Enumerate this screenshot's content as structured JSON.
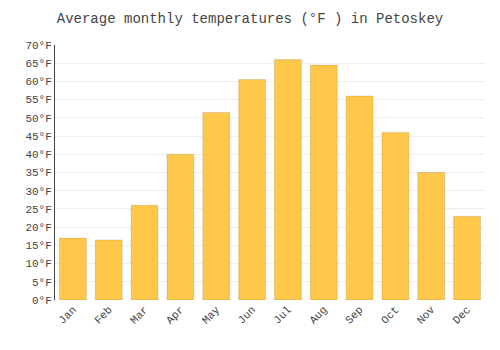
{
  "chart_data": {
    "type": "bar",
    "title": "Average monthly temperatures (°F ) in Petoskey",
    "categories": [
      "Jan",
      "Feb",
      "Mar",
      "Apr",
      "May",
      "Jun",
      "Jul",
      "Aug",
      "Sep",
      "Oct",
      "Nov",
      "Dec"
    ],
    "values": [
      17,
      16.5,
      26,
      40,
      51.5,
      60.5,
      66,
      64.5,
      56,
      46,
      35,
      23
    ],
    "color": "#FFC84A",
    "ylim": [
      0,
      70
    ],
    "yticks": [
      {
        "value": 0,
        "label": "0°F"
      },
      {
        "value": 5,
        "label": "5°F"
      },
      {
        "value": 10,
        "label": "10°F"
      },
      {
        "value": 15,
        "label": "15°F"
      },
      {
        "value": 20,
        "label": "20°F"
      },
      {
        "value": 25,
        "label": "25°F"
      },
      {
        "value": 30,
        "label": "30°F"
      },
      {
        "value": 35,
        "label": "35°F"
      },
      {
        "value": 40,
        "label": "40°F"
      },
      {
        "value": 45,
        "label": "45°F"
      },
      {
        "value": 50,
        "label": "50°F"
      },
      {
        "value": 55,
        "label": "55°F"
      },
      {
        "value": 60,
        "label": "60°F"
      },
      {
        "value": 65,
        "label": "65°F"
      },
      {
        "value": 70,
        "label": "70°F"
      }
    ],
    "grid": true
  }
}
